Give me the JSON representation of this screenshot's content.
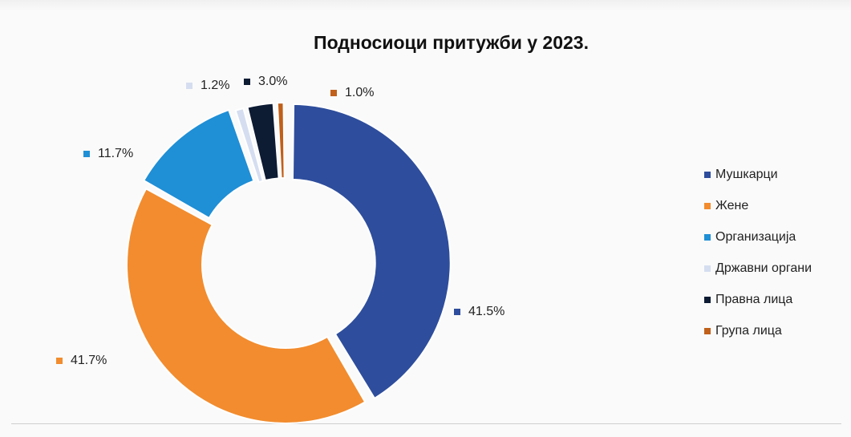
{
  "chart_data": {
    "type": "pie",
    "subtype": "donut",
    "title": "Подносиоци притужби у 2023.",
    "legend_position": "right",
    "series": [
      {
        "name": "Мушкарци",
        "value": 41.5,
        "label": "41.5%",
        "color": "#2e4d9c"
      },
      {
        "name": "Жене",
        "value": 41.7,
        "label": "41.7%",
        "color": "#f28c2e"
      },
      {
        "name": "Организација",
        "value": 11.7,
        "label": "11.7%",
        "color": "#1f8fd6"
      },
      {
        "name": "Државни органи",
        "value": 1.2,
        "label": "1.2%",
        "color": "#d5def0"
      },
      {
        "name": "Правна лица",
        "value": 3.0,
        "label": "3.0%",
        "color": "#0d1b33"
      },
      {
        "name": "Група лица",
        "value": 1.0,
        "label": "1.0%",
        "color": "#c0601a"
      }
    ]
  }
}
